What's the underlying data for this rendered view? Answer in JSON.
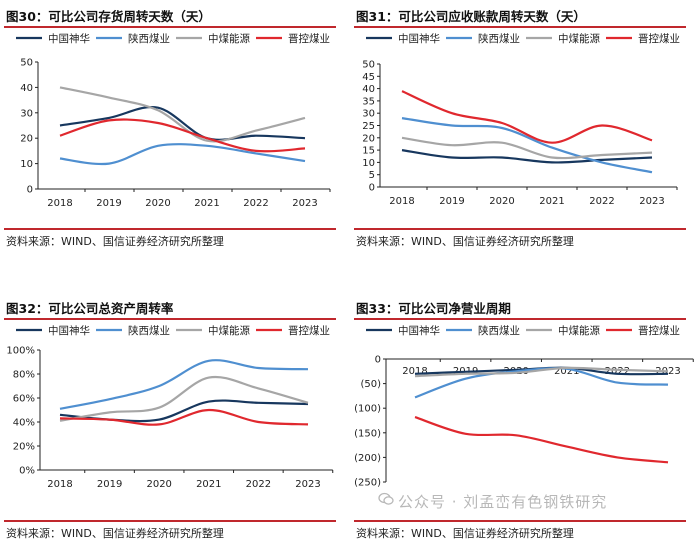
{
  "legend": {
    "series_names": [
      "中国神华",
      "陕西煤业",
      "中煤能源",
      "晋控煤业"
    ],
    "colors": [
      "#17375e",
      "#4f8fd0",
      "#a6a6a6",
      "#e0282e"
    ]
  },
  "watermark": "公众号 · 刘孟峦有色钢铁研究",
  "chart_data": [
    {
      "type": "line",
      "title": "图30：可比公司存货周转天数（天）",
      "source": "资料来源：WIND、国信证券经济研究所整理",
      "categories": [
        "2018",
        "2019",
        "2020",
        "2021",
        "2022",
        "2023"
      ],
      "ylim": [
        0,
        50
      ],
      "yticks": [
        0,
        10,
        20,
        30,
        40,
        50
      ],
      "ytick_labels": [
        "0",
        "10",
        "20",
        "30",
        "40",
        "50"
      ],
      "series": [
        {
          "name": "中国神华",
          "values": [
            25,
            28,
            32,
            20,
            21,
            20
          ]
        },
        {
          "name": "陕西煤业",
          "values": [
            12,
            10,
            17,
            17,
            14,
            11
          ]
        },
        {
          "name": "中煤能源",
          "values": [
            40,
            36,
            31,
            19,
            23,
            28
          ]
        },
        {
          "name": "晋控煤业",
          "values": [
            21,
            27,
            26,
            20,
            15,
            16
          ]
        }
      ]
    },
    {
      "type": "line",
      "title": "图31：可比公司应收账款周转天数（天）",
      "source": "资料来源：WIND、国信证券经济研究所整理",
      "categories": [
        "2018",
        "2019",
        "2020",
        "2021",
        "2022",
        "2023"
      ],
      "ylim": [
        0,
        50
      ],
      "yticks": [
        0,
        5,
        10,
        15,
        20,
        25,
        30,
        35,
        40,
        45,
        50
      ],
      "ytick_labels": [
        "0",
        "5",
        "10",
        "15",
        "20",
        "25",
        "30",
        "35",
        "40",
        "45",
        "50"
      ],
      "series": [
        {
          "name": "中国神华",
          "values": [
            15,
            12,
            12,
            10,
            11,
            12
          ]
        },
        {
          "name": "陕西煤业",
          "values": [
            28,
            25,
            24,
            16,
            10,
            6
          ]
        },
        {
          "name": "中煤能源",
          "values": [
            20,
            17,
            18,
            12,
            13,
            14
          ]
        },
        {
          "name": "晋控煤业",
          "values": [
            39,
            30,
            26,
            18,
            25,
            19
          ]
        }
      ]
    },
    {
      "type": "line",
      "title": "图32：可比公司总资产周转率",
      "source": "资料来源：WIND、国信证券经济研究所整理",
      "categories": [
        "2018",
        "2019",
        "2020",
        "2021",
        "2022",
        "2023"
      ],
      "ylim": [
        0,
        100
      ],
      "yticks": [
        0,
        20,
        40,
        60,
        80,
        100
      ],
      "ytick_labels": [
        "0%",
        "20%",
        "40%",
        "60%",
        "80%",
        "100%"
      ],
      "series": [
        {
          "name": "中国神华",
          "values": [
            46,
            42,
            42,
            57,
            56,
            55
          ]
        },
        {
          "name": "陕西煤业",
          "values": [
            51,
            59,
            70,
            91,
            85,
            84
          ]
        },
        {
          "name": "中煤能源",
          "values": [
            41,
            48,
            52,
            77,
            68,
            56
          ]
        },
        {
          "name": "晋控煤业",
          "values": [
            43,
            42,
            38,
            50,
            40,
            38
          ]
        }
      ]
    },
    {
      "type": "line",
      "title": "图33：可比公司净营业周期",
      "source": "资料来源：WIND、国信证券经济研究所整理",
      "categories": [
        "2018",
        "2019",
        "2020",
        "2021",
        "2022",
        "2023"
      ],
      "ylim": [
        -250,
        0
      ],
      "yticks": [
        0,
        -50,
        -100,
        -150,
        -200,
        -250
      ],
      "ytick_labels": [
        "0",
        "(50)",
        "(100)",
        "(150)",
        "(200)",
        "(250)"
      ],
      "series": [
        {
          "name": "中国神华",
          "values": [
            -30,
            -26,
            -22,
            -18,
            -30,
            -30
          ]
        },
        {
          "name": "陕西煤业",
          "values": [
            -78,
            -40,
            -25,
            -20,
            -48,
            -52
          ]
        },
        {
          "name": "中煤能源",
          "values": [
            -35,
            -30,
            -28,
            -18,
            -22,
            -25
          ]
        },
        {
          "name": "晋控煤业",
          "values": [
            -118,
            -152,
            -155,
            -178,
            -200,
            -210
          ]
        }
      ]
    }
  ]
}
